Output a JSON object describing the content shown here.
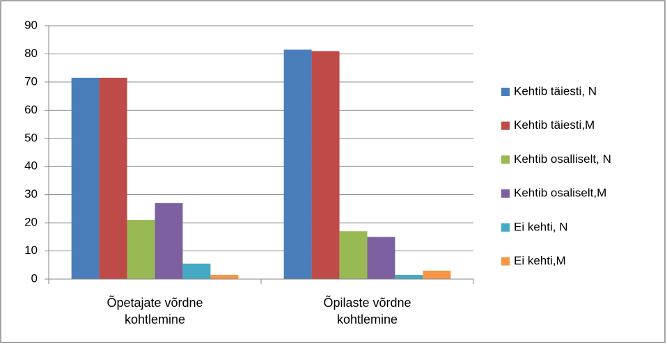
{
  "chart_data": {
    "type": "bar",
    "categories": [
      "Õpetajate võrdne kohtlemine",
      "Õpilaste võrdne kohtlemine"
    ],
    "series": [
      {
        "name": "Kehtib täiesti, N",
        "color": "#4a7ebb",
        "values": [
          71.5,
          81.5
        ]
      },
      {
        "name": "Kehtib täiesti,M",
        "color": "#be4b48",
        "values": [
          71.5,
          81
        ]
      },
      {
        "name": "Kehtib osalliselt, N",
        "color": "#98b954",
        "values": [
          21,
          17
        ]
      },
      {
        "name": "Kehtib osaliselt,M",
        "color": "#7d60a0",
        "values": [
          27,
          15
        ]
      },
      {
        "name": "Ei kehti, N",
        "color": "#46aac5",
        "values": [
          5.5,
          1.5
        ]
      },
      {
        "name": "Ei kehti,M",
        "color": "#f79646",
        "values": [
          1.5,
          3
        ]
      }
    ],
    "ylim": [
      0,
      90
    ],
    "yticks": [
      0,
      10,
      20,
      30,
      40,
      50,
      60,
      70,
      80,
      90
    ],
    "grid": true,
    "legend": "right"
  }
}
